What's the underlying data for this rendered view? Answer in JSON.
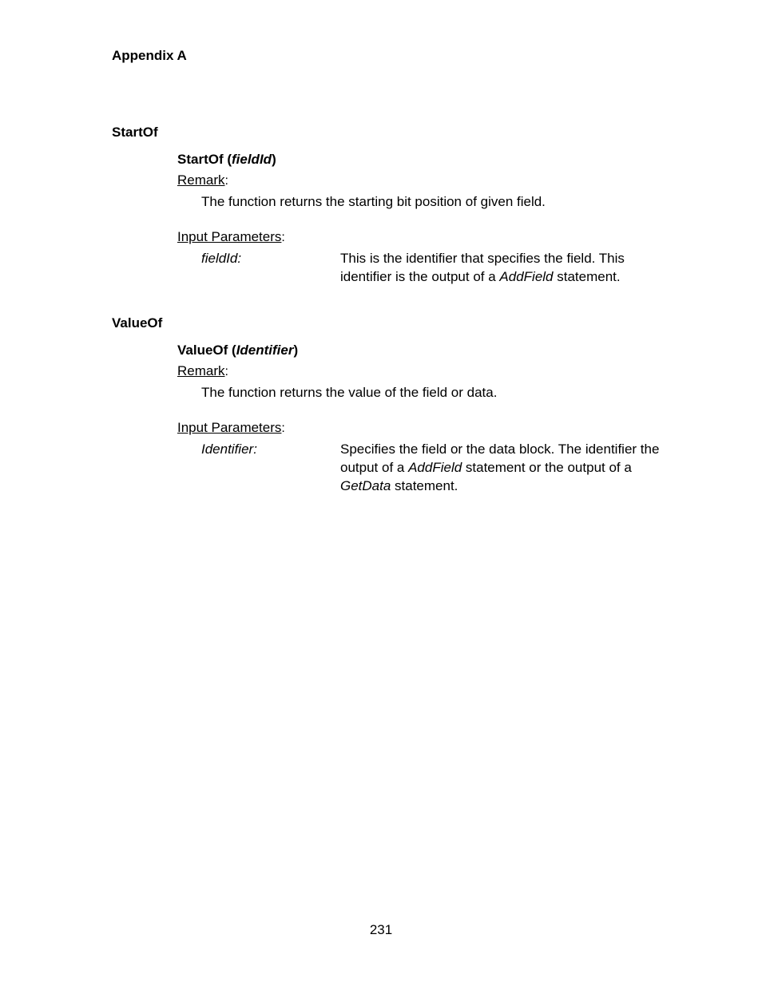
{
  "page": {
    "header": "Appendix A",
    "page_number": "231",
    "background_color": "#ffffff",
    "text_color": "#000000",
    "font_family": "Arial, Helvetica, sans-serif",
    "base_font_size_pt": 13
  },
  "sections": {
    "startof": {
      "title": "StartOf",
      "signature_prefix": "StartOf (",
      "signature_param": "fieldId",
      "signature_suffix": ")",
      "remark_label": "Remark",
      "remark_text": "The function returns the starting bit position of given field.",
      "input_label": "Input Parameters",
      "param_name": "fieldId:",
      "param_desc_pre": "This is the identifier that specifies the field. This identifier is the output of a ",
      "param_desc_ital": "AddField",
      "param_desc_post": " statement."
    },
    "valueof": {
      "title": "ValueOf",
      "signature_prefix": "ValueOf (",
      "signature_param": "Identifier",
      "signature_suffix": ")",
      "remark_label": "Remark",
      "remark_text": "The function returns the value of the field or data.",
      "input_label": "Input Parameters",
      "param_name": "Identifier:",
      "param_desc_pre": "Specifies the field or the data block. The identifier the output of a ",
      "param_desc_ital1": "AddField",
      "param_desc_mid": " statement or the output of a ",
      "param_desc_ital2": "GetData",
      "param_desc_post": " statement."
    }
  }
}
